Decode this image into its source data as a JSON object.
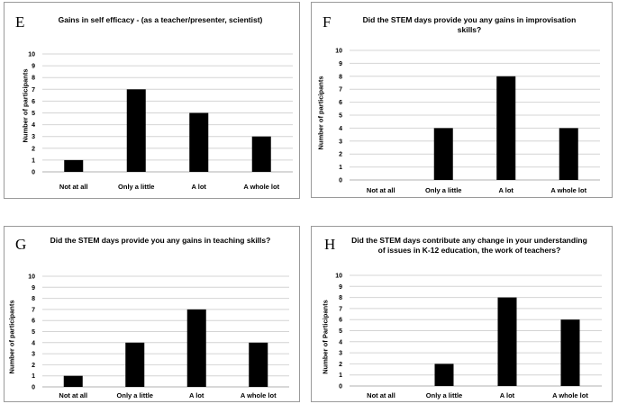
{
  "panels": [
    {
      "letter": "E",
      "chart_data": {
        "type": "bar",
        "title": "Gains in self efficacy - (as a teacher/presenter, scientist)",
        "ylabel": "Number of participants",
        "xlabel": "",
        "categories": [
          "Not at all",
          "Only a little",
          "A lot",
          "A whole lot"
        ],
        "values": [
          1,
          7,
          5,
          3
        ],
        "ylim": [
          0,
          10
        ],
        "yticks": [
          "0",
          "1",
          "2",
          "3",
          "4",
          "5",
          "6",
          "7",
          "8",
          "9",
          "10"
        ],
        "grid": true,
        "legend": "none"
      }
    },
    {
      "letter": "F",
      "chart_data": {
        "type": "bar",
        "title": "Did the STEM days provide you any gains in improvisation skills?",
        "ylabel": "Number of participants",
        "xlabel": "",
        "categories": [
          "Not at all",
          "Only a little",
          "A lot",
          "A whole lot"
        ],
        "values": [
          0,
          4,
          8,
          4
        ],
        "ylim": [
          0,
          10
        ],
        "yticks": [
          "0",
          "1",
          "2",
          "3",
          "4",
          "5",
          "6",
          "7",
          "8",
          "9",
          "10"
        ],
        "grid": true,
        "legend": "none"
      }
    },
    {
      "letter": "G",
      "chart_data": {
        "type": "bar",
        "title": "Did the STEM days provide you any gains in teaching skills?",
        "ylabel": "Number of participants",
        "xlabel": "",
        "categories": [
          "Not at all",
          "Only a little",
          "A lot",
          "A whole lot"
        ],
        "values": [
          1,
          4,
          7,
          4
        ],
        "ylim": [
          0,
          10
        ],
        "yticks": [
          "0",
          "1",
          "2",
          "3",
          "4",
          "5",
          "6",
          "7",
          "8",
          "9",
          "10"
        ],
        "grid": true,
        "legend": "none"
      }
    },
    {
      "letter": "H",
      "chart_data": {
        "type": "bar",
        "title": "Did the STEM days contribute any change in your understanding of issues in K-12 education, the work of teachers?",
        "ylabel": "Number of Participants",
        "xlabel": "",
        "categories": [
          "Not at all",
          "Only a little",
          "A lot",
          "A whole lot"
        ],
        "values": [
          0,
          2,
          8,
          6
        ],
        "ylim": [
          0,
          10
        ],
        "yticks": [
          "0",
          "1",
          "2",
          "3",
          "4",
          "5",
          "6",
          "7",
          "8",
          "9",
          "10"
        ],
        "grid": true,
        "legend": "none"
      }
    }
  ]
}
